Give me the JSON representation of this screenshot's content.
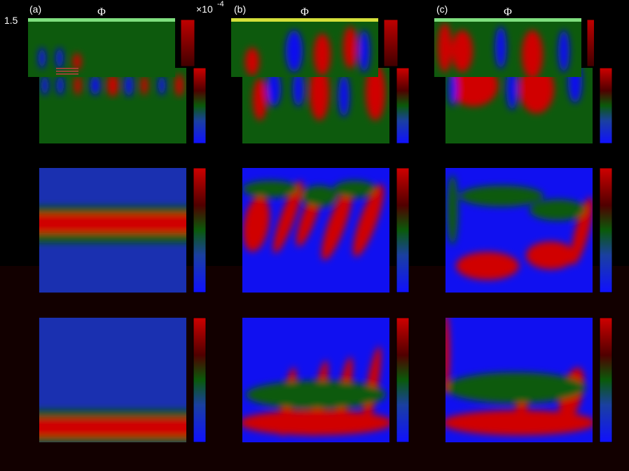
{
  "top_left_tick": "1.5",
  "scale_factor": "×10",
  "scale_exponent": "-4",
  "panels": [
    {
      "label": "(a)",
      "title": "Φ"
    },
    {
      "label": "(b)",
      "title": "Φ"
    },
    {
      "label": "(c)",
      "title": "Φ"
    }
  ]
}
